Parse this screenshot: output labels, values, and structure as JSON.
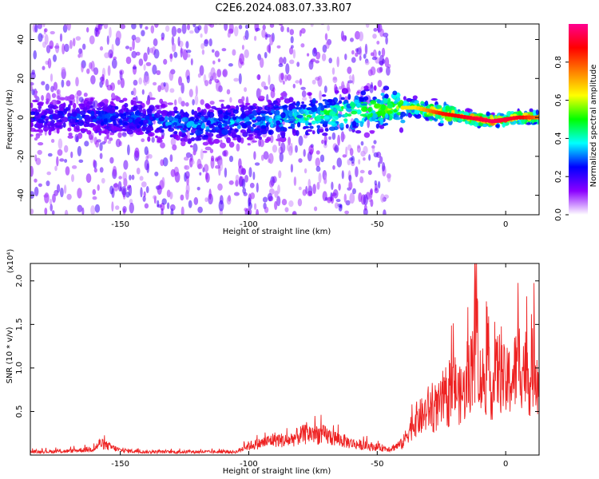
{
  "title": "C2E6.2024.083.07.33.R07",
  "chart_data": [
    {
      "type": "heatmap",
      "xlabel": "Height of straight line (km)",
      "ylabel": "Frequency (Hz)",
      "xlim": [
        -185,
        13
      ],
      "ylim": [
        -50,
        48
      ],
      "xticks": [
        -150,
        -100,
        -50,
        0
      ],
      "yticks": [
        -40,
        -20,
        0,
        20,
        40
      ],
      "colorbar": {
        "label": "Normalized spectral amplitude",
        "range": [
          0,
          1
        ],
        "ticks": [
          "0.0",
          "0.2",
          "0.4",
          "0.6",
          "0.8"
        ],
        "colors": [
          "#ffffff",
          "#8b00ff",
          "#0000ff",
          "#00ffff",
          "#00ff00",
          "#ffff00",
          "#ff8000",
          "#ff0000",
          "#ff0090"
        ]
      },
      "ridge": {
        "description_points_x": [
          -185,
          -150,
          -120,
          -100,
          -80,
          -60,
          -45,
          -35,
          -25,
          -15,
          -5,
          5,
          13
        ],
        "center_freq": [
          0,
          0,
          -4,
          -2,
          0,
          3,
          5,
          5,
          2,
          0,
          -2,
          0,
          0
        ],
        "peak_amplitude": [
          0.25,
          0.3,
          0.35,
          0.35,
          0.45,
          0.55,
          0.6,
          0.6,
          0.8,
          0.85,
          0.9,
          0.85,
          0.7
        ]
      }
    },
    {
      "type": "line",
      "xlabel": "Height of straight line (km)",
      "ylabel": "SNR (10 * v/v)",
      "yunit": "(x10⁴)",
      "xlim": [
        -185,
        13
      ],
      "ylim": [
        0,
        2.2
      ],
      "xticks": [
        -150,
        -100,
        -50,
        0
      ],
      "yticks": [
        0.5,
        1.0,
        1.5,
        2.0
      ],
      "series": [
        {
          "color": "#ee2222",
          "x": [
            -185,
            -170,
            -160,
            -158,
            -150,
            -140,
            -120,
            -105,
            -100,
            -95,
            -90,
            -85,
            -80,
            -75,
            -70,
            -65,
            -60,
            -55,
            -50,
            -45,
            -40,
            -38,
            -35,
            -32,
            -30,
            -28,
            -25,
            -22,
            -20,
            -18,
            -15,
            -13,
            -12,
            -10,
            -8,
            -5,
            -3,
            0,
            3,
            5,
            8,
            10,
            11,
            12,
            13
          ],
          "y": [
            0.04,
            0.05,
            0.08,
            0.15,
            0.06,
            0.04,
            0.04,
            0.04,
            0.12,
            0.15,
            0.2,
            0.18,
            0.25,
            0.28,
            0.25,
            0.2,
            0.15,
            0.12,
            0.1,
            0.08,
            0.15,
            0.3,
            0.45,
            0.5,
            0.6,
            0.55,
            0.65,
            0.7,
            0.9,
            0.75,
            0.85,
            1.2,
            2.2,
            0.95,
            1.0,
            0.85,
            1.1,
            0.9,
            1.0,
            1.2,
            1.1,
            0.9,
            1.3,
            1.1,
            0.95
          ]
        }
      ]
    }
  ]
}
